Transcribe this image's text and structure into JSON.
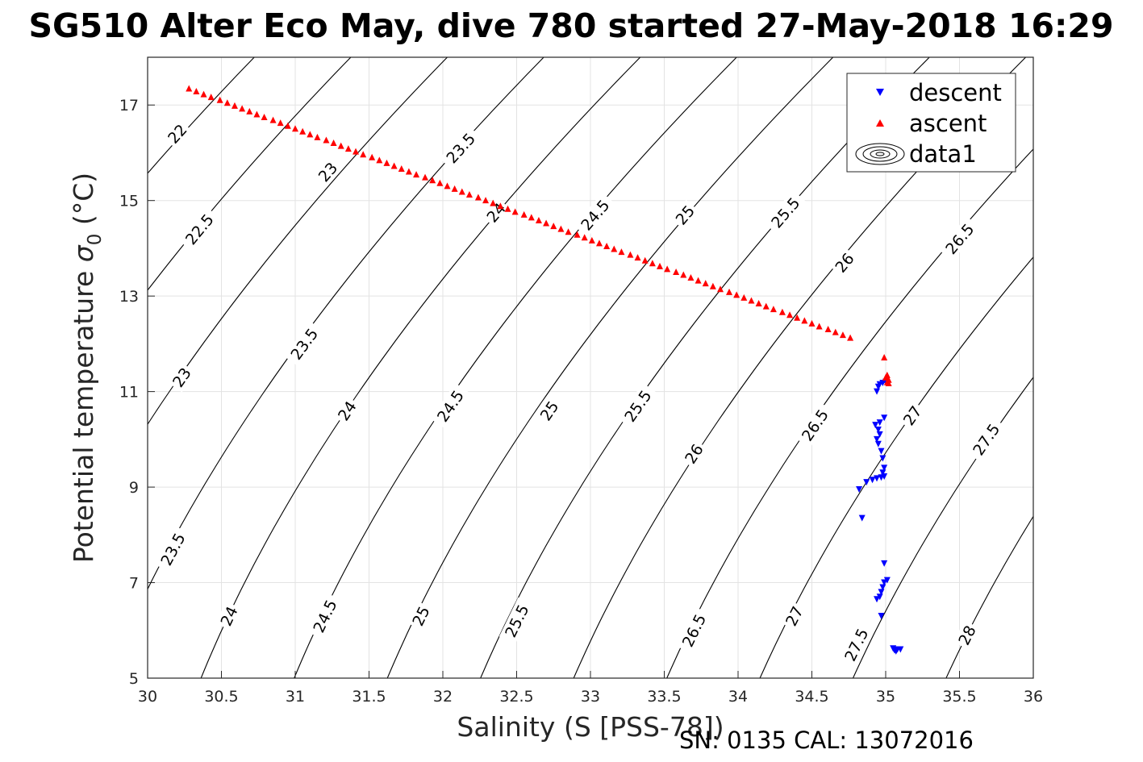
{
  "chart_data": {
    "type": "scatter",
    "title": "SG510 Alter Eco May, dive 780 started 27-May-2018 16:29",
    "xlabel": "Salinity (S [PSS-78])",
    "ylabel_main": "Potential temperature ",
    "ylabel_sigma": "σ",
    "ylabel_sub": "0",
    "ylabel_unit": " (°C)",
    "footer": "SN: 0135  CAL: 13072016",
    "xlim": [
      30,
      36
    ],
    "ylim": [
      5,
      18
    ],
    "xticks": [
      "30",
      "30.5",
      "31",
      "31.5",
      "32",
      "32.5",
      "33",
      "33.5",
      "34",
      "34.5",
      "35",
      "35.5",
      "36"
    ],
    "yticks": [
      "5",
      "7",
      "9",
      "11",
      "13",
      "15",
      "17"
    ],
    "grid": true,
    "legend_position": "top-right",
    "legend": [
      {
        "name": "descent",
        "marker": "triangle-down",
        "color": "#0000ff"
      },
      {
        "name": "ascent",
        "marker": "triangle-up",
        "color": "#ff0000"
      },
      {
        "name": "data1",
        "marker": "contour",
        "color": "#000000"
      }
    ],
    "series": [
      {
        "name": "descent",
        "color": "#0000ff",
        "points": [
          [
            35.06,
            5.58
          ],
          [
            35.08,
            5.6
          ],
          [
            35.1,
            5.6
          ],
          [
            35.05,
            5.62
          ],
          [
            35.07,
            5.56
          ],
          [
            34.97,
            6.3
          ],
          [
            34.94,
            6.65
          ],
          [
            34.96,
            6.7
          ],
          [
            34.97,
            6.8
          ],
          [
            34.98,
            6.9
          ],
          [
            34.99,
            7.0
          ],
          [
            35.01,
            7.05
          ],
          [
            34.99,
            7.4
          ],
          [
            34.84,
            8.35
          ],
          [
            34.82,
            8.95
          ],
          [
            34.87,
            9.1
          ],
          [
            34.91,
            9.15
          ],
          [
            34.94,
            9.18
          ],
          [
            34.97,
            9.2
          ],
          [
            34.99,
            9.22
          ],
          [
            34.98,
            9.3
          ],
          [
            34.99,
            9.4
          ],
          [
            34.98,
            9.6
          ],
          [
            34.97,
            9.75
          ],
          [
            34.95,
            9.9
          ],
          [
            34.94,
            10.0
          ],
          [
            34.96,
            10.1
          ],
          [
            34.95,
            10.2
          ],
          [
            34.93,
            10.3
          ],
          [
            34.96,
            10.35
          ],
          [
            34.99,
            10.45
          ],
          [
            34.94,
            11.0
          ],
          [
            34.95,
            11.1
          ],
          [
            34.96,
            11.15
          ],
          [
            34.98,
            11.18
          ],
          [
            35.0,
            11.2
          ]
        ]
      },
      {
        "name": "ascent",
        "color": "#ff0000",
        "points": [
          [
            30.28,
            17.35
          ],
          [
            30.33,
            17.29
          ],
          [
            30.38,
            17.23
          ],
          [
            30.43,
            17.17
          ],
          [
            30.49,
            17.11
          ],
          [
            30.54,
            17.05
          ],
          [
            30.59,
            16.99
          ],
          [
            30.64,
            16.93
          ],
          [
            30.69,
            16.87
          ],
          [
            30.74,
            16.81
          ],
          [
            30.79,
            16.75
          ],
          [
            30.85,
            16.69
          ],
          [
            30.9,
            16.63
          ],
          [
            30.95,
            16.57
          ],
          [
            31.0,
            16.51
          ],
          [
            31.05,
            16.45
          ],
          [
            31.1,
            16.39
          ],
          [
            31.15,
            16.33
          ],
          [
            31.21,
            16.27
          ],
          [
            31.26,
            16.21
          ],
          [
            31.31,
            16.15
          ],
          [
            31.36,
            16.09
          ],
          [
            31.41,
            16.03
          ],
          [
            31.46,
            15.97
          ],
          [
            31.52,
            15.91
          ],
          [
            31.57,
            15.85
          ],
          [
            31.62,
            15.79
          ],
          [
            31.67,
            15.73
          ],
          [
            31.72,
            15.67
          ],
          [
            31.77,
            15.61
          ],
          [
            31.82,
            15.55
          ],
          [
            31.88,
            15.49
          ],
          [
            31.93,
            15.43
          ],
          [
            31.98,
            15.37
          ],
          [
            32.03,
            15.31
          ],
          [
            32.08,
            15.25
          ],
          [
            32.13,
            15.19
          ],
          [
            32.18,
            15.13
          ],
          [
            32.24,
            15.07
          ],
          [
            32.29,
            15.01
          ],
          [
            32.34,
            14.95
          ],
          [
            32.39,
            14.89
          ],
          [
            32.44,
            14.83
          ],
          [
            32.49,
            14.77
          ],
          [
            32.55,
            14.71
          ],
          [
            32.6,
            14.65
          ],
          [
            32.65,
            14.59
          ],
          [
            32.7,
            14.53
          ],
          [
            32.75,
            14.47
          ],
          [
            32.8,
            14.41
          ],
          [
            32.85,
            14.35
          ],
          [
            32.91,
            14.29
          ],
          [
            32.96,
            14.23
          ],
          [
            33.01,
            14.17
          ],
          [
            33.06,
            14.11
          ],
          [
            33.11,
            14.05
          ],
          [
            33.16,
            13.99
          ],
          [
            33.21,
            13.93
          ],
          [
            33.27,
            13.87
          ],
          [
            33.32,
            13.81
          ],
          [
            33.37,
            13.75
          ],
          [
            33.42,
            13.69
          ],
          [
            33.47,
            13.63
          ],
          [
            33.52,
            13.57
          ],
          [
            33.58,
            13.51
          ],
          [
            33.63,
            13.45
          ],
          [
            33.68,
            13.39
          ],
          [
            33.73,
            13.33
          ],
          [
            33.78,
            13.27
          ],
          [
            33.83,
            13.21
          ],
          [
            33.88,
            13.15
          ],
          [
            33.94,
            13.09
          ],
          [
            33.99,
            13.03
          ],
          [
            34.04,
            12.97
          ],
          [
            34.09,
            12.91
          ],
          [
            34.14,
            12.85
          ],
          [
            34.19,
            12.79
          ],
          [
            34.24,
            12.73
          ],
          [
            34.3,
            12.67
          ],
          [
            34.35,
            12.61
          ],
          [
            34.4,
            12.55
          ],
          [
            34.45,
            12.49
          ],
          [
            34.5,
            12.43
          ],
          [
            34.55,
            12.37
          ],
          [
            34.61,
            12.31
          ],
          [
            34.66,
            12.25
          ],
          [
            34.71,
            12.19
          ],
          [
            34.76,
            12.13
          ],
          [
            34.99,
            11.72
          ],
          [
            35.01,
            11.35
          ],
          [
            35.0,
            11.3
          ],
          [
            35.02,
            11.25
          ],
          [
            35.01,
            11.2
          ],
          [
            35.02,
            11.18
          ]
        ]
      }
    ],
    "contours": {
      "series_name": "data1",
      "color": "#000000",
      "levels": [
        "22",
        "22.5",
        "23",
        "23.5",
        "24",
        "24.5",
        "25",
        "25.5",
        "26",
        "26.5",
        "27",
        "27.5",
        "28"
      ],
      "labels": [
        {
          "text": "22",
          "x": 30.2,
          "y": 16.4
        },
        {
          "text": "22.5",
          "x": 30.35,
          "y": 14.4
        },
        {
          "text": "23",
          "x": 30.23,
          "y": 11.3
        },
        {
          "text": "23",
          "x": 31.22,
          "y": 15.6
        },
        {
          "text": "23.5",
          "x": 30.17,
          "y": 7.7
        },
        {
          "text": "23.5",
          "x": 31.06,
          "y": 12.0
        },
        {
          "text": "23.5",
          "x": 32.12,
          "y": 16.1
        },
        {
          "text": "24",
          "x": 30.55,
          "y": 6.3
        },
        {
          "text": "24",
          "x": 31.35,
          "y": 10.6
        },
        {
          "text": "24",
          "x": 32.36,
          "y": 14.75
        },
        {
          "text": "24.5",
          "x": 31.2,
          "y": 6.3
        },
        {
          "text": "24.5",
          "x": 32.05,
          "y": 10.7
        },
        {
          "text": "24.5",
          "x": 33.03,
          "y": 14.7
        },
        {
          "text": "25",
          "x": 31.85,
          "y": 6.3
        },
        {
          "text": "25",
          "x": 32.72,
          "y": 10.6
        },
        {
          "text": "25",
          "x": 33.64,
          "y": 14.7
        },
        {
          "text": "25.5",
          "x": 32.5,
          "y": 6.2
        },
        {
          "text": "25.5",
          "x": 33.32,
          "y": 10.7
        },
        {
          "text": "25.5",
          "x": 34.32,
          "y": 14.75
        },
        {
          "text": "26",
          "x": 33.7,
          "y": 9.7
        },
        {
          "text": "26",
          "x": 34.72,
          "y": 13.7
        },
        {
          "text": "26.5",
          "x": 33.7,
          "y": 6.0
        },
        {
          "text": "26.5",
          "x": 34.52,
          "y": 10.3
        },
        {
          "text": "26.5",
          "x": 35.5,
          "y": 14.2
        },
        {
          "text": "27",
          "x": 34.38,
          "y": 6.3
        },
        {
          "text": "27",
          "x": 35.18,
          "y": 10.5
        },
        {
          "text": "27.5",
          "x": 34.8,
          "y": 5.7
        },
        {
          "text": "27.5",
          "x": 35.68,
          "y": 10.0
        },
        {
          "text": "28",
          "x": 35.55,
          "y": 5.9
        }
      ]
    }
  }
}
